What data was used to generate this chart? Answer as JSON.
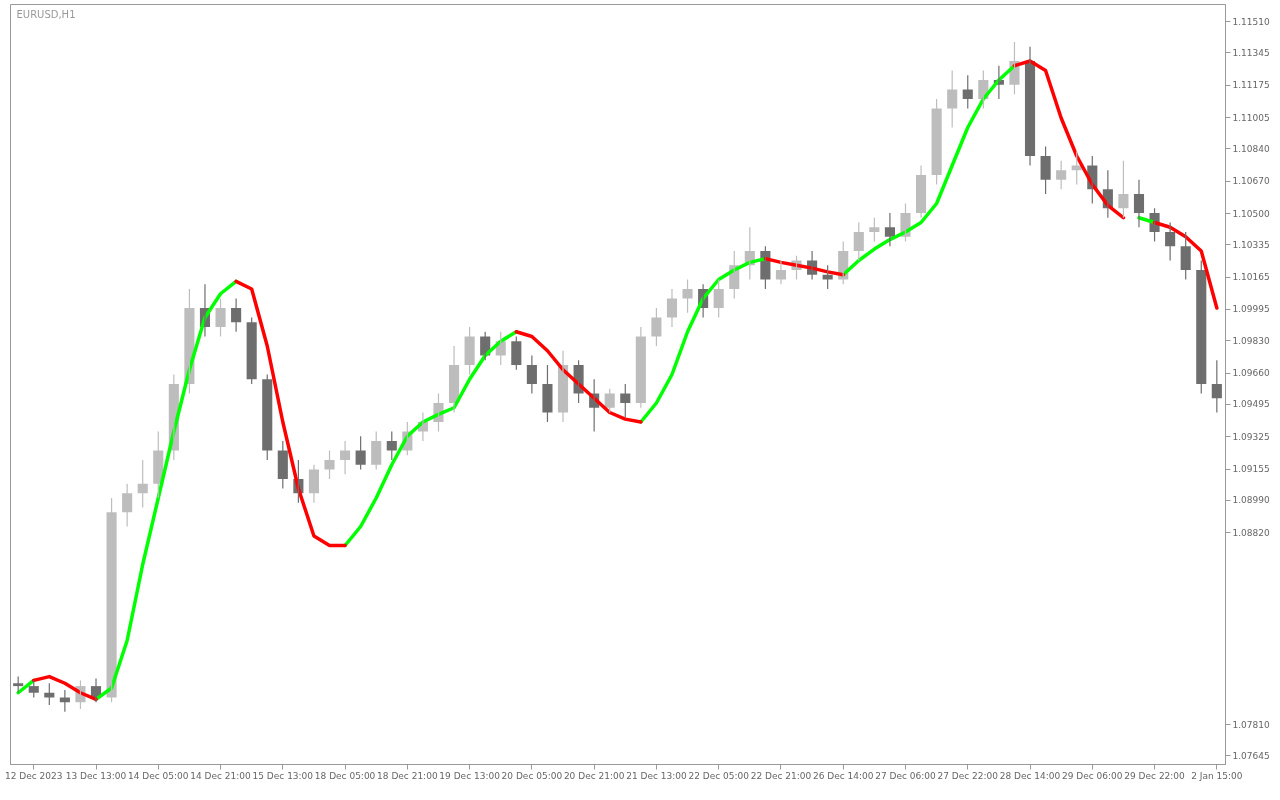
{
  "chart_data": {
    "type": "candlestick",
    "title": "EURUSD,H1",
    "categories": [
      null,
      "12 Dec 2023",
      null,
      null,
      null,
      "13 Dec 13:00",
      null,
      null,
      null,
      "14 Dec 05:00",
      null,
      null,
      null,
      "14 Dec 21:00",
      null,
      null,
      null,
      "15 Dec 13:00",
      null,
      null,
      null,
      "18 Dec 05:00",
      null,
      null,
      null,
      "18 Dec 21:00",
      null,
      null,
      null,
      "19 Dec 13:00",
      null,
      null,
      null,
      "20 Dec 05:00",
      null,
      null,
      null,
      "20 Dec 21:00",
      null,
      null,
      null,
      "21 Dec 13:00",
      null,
      null,
      null,
      "22 Dec 05:00",
      null,
      null,
      null,
      "22 Dec 21:00",
      null,
      null,
      null,
      "26 Dec 14:00",
      null,
      null,
      null,
      "27 Dec 06:00",
      null,
      null,
      null,
      "27 Dec 22:00",
      null,
      null,
      null,
      "28 Dec 14:00",
      null,
      null,
      null,
      "29 Dec 06:00",
      null,
      null,
      null,
      "29 Dec 22:00",
      null,
      null,
      null,
      "2 Jan 15:00"
    ],
    "ohlc": [
      [
        1.08025,
        1.0806,
        1.07975,
        1.0801
      ],
      [
        1.0801,
        1.0804,
        1.0795,
        1.07975
      ],
      [
        1.07975,
        1.08025,
        1.0791,
        1.0795
      ],
      [
        1.0795,
        1.0799,
        1.07875,
        1.07925
      ],
      [
        1.07925,
        1.0804,
        1.0789,
        1.0801
      ],
      [
        1.0801,
        1.0805,
        1.07925,
        1.0795
      ],
      [
        1.0795,
        1.09,
        1.07925,
        1.08925
      ],
      [
        1.08925,
        1.09075,
        1.0885,
        1.09025
      ],
      [
        1.09025,
        1.092,
        1.0895,
        1.09075
      ],
      [
        1.09075,
        1.0935,
        1.09,
        1.0925
      ],
      [
        1.0925,
        1.0965,
        1.092,
        1.096
      ],
      [
        1.096,
        1.101,
        1.0955,
        1.1
      ],
      [
        1.1,
        1.10125,
        1.0985,
        1.099
      ],
      [
        1.099,
        1.1005,
        1.0985,
        1.1
      ],
      [
        1.1,
        1.1005,
        1.09875,
        1.09925
      ],
      [
        1.09925,
        1.0995,
        1.096,
        1.09625
      ],
      [
        1.09625,
        1.0965,
        1.092,
        1.0925
      ],
      [
        1.0925,
        1.093,
        1.0905,
        1.091
      ],
      [
        1.091,
        1.092,
        1.08975,
        1.09025
      ],
      [
        1.09025,
        1.09175,
        1.08975,
        1.0915
      ],
      [
        1.0915,
        1.0925,
        1.091,
        1.092
      ],
      [
        1.092,
        1.093,
        1.09125,
        1.0925
      ],
      [
        1.0925,
        1.09325,
        1.0915,
        1.09175
      ],
      [
        1.09175,
        1.0935,
        1.0915,
        1.093
      ],
      [
        1.093,
        1.0935,
        1.092,
        1.0925
      ],
      [
        1.0925,
        1.094,
        1.09225,
        1.0935
      ],
      [
        1.0935,
        1.0945,
        1.093,
        1.094
      ],
      [
        1.094,
        1.0955,
        1.0935,
        1.095
      ],
      [
        1.095,
        1.098,
        1.0945,
        1.097
      ],
      [
        1.097,
        1.099,
        1.0965,
        1.0985
      ],
      [
        1.0985,
        1.09875,
        1.09725,
        1.0975
      ],
      [
        1.0975,
        1.09875,
        1.097,
        1.09825
      ],
      [
        1.09825,
        1.0985,
        1.09675,
        1.097
      ],
      [
        1.097,
        1.0975,
        1.0955,
        1.096
      ],
      [
        1.096,
        1.097,
        1.094,
        1.0945
      ],
      [
        1.0945,
        1.09775,
        1.094,
        1.097
      ],
      [
        1.097,
        1.09725,
        1.095,
        1.0955
      ],
      [
        1.0955,
        1.09625,
        1.0935,
        1.09475
      ],
      [
        1.09475,
        1.09575,
        1.0945,
        1.0955
      ],
      [
        1.0955,
        1.096,
        1.09425,
        1.095
      ],
      [
        1.095,
        1.099,
        1.09475,
        1.0985
      ],
      [
        1.0985,
        1.1,
        1.098,
        1.0995
      ],
      [
        1.0995,
        1.101,
        1.099,
        1.1005
      ],
      [
        1.1005,
        1.1015,
        1.09975,
        1.101
      ],
      [
        1.101,
        1.10125,
        1.0995,
        1.1
      ],
      [
        1.1,
        1.1015,
        1.0995,
        1.101
      ],
      [
        1.101,
        1.103,
        1.1005,
        1.10225
      ],
      [
        1.10225,
        1.10425,
        1.1015,
        1.103
      ],
      [
        1.103,
        1.10325,
        1.101,
        1.1015
      ],
      [
        1.1015,
        1.1025,
        1.10125,
        1.102
      ],
      [
        1.102,
        1.10275,
        1.1015,
        1.1025
      ],
      [
        1.1025,
        1.103,
        1.1015,
        1.10175
      ],
      [
        1.10175,
        1.10225,
        1.101,
        1.1015
      ],
      [
        1.1015,
        1.1035,
        1.10125,
        1.103
      ],
      [
        1.103,
        1.1045,
        1.1025,
        1.104
      ],
      [
        1.104,
        1.10475,
        1.1035,
        1.10425
      ],
      [
        1.10425,
        1.105,
        1.10325,
        1.10375
      ],
      [
        1.10375,
        1.1055,
        1.1035,
        1.105
      ],
      [
        1.105,
        1.1075,
        1.10475,
        1.107
      ],
      [
        1.107,
        1.111,
        1.1065,
        1.1105
      ],
      [
        1.1105,
        1.1125,
        1.1095,
        1.1115
      ],
      [
        1.1115,
        1.11225,
        1.1105,
        1.111
      ],
      [
        1.111,
        1.1125,
        1.1105,
        1.112
      ],
      [
        1.112,
        1.11275,
        1.111,
        1.11175
      ],
      [
        1.11175,
        1.114,
        1.11125,
        1.113
      ],
      [
        1.113,
        1.11375,
        1.1075,
        1.108
      ],
      [
        1.108,
        1.1085,
        1.106,
        1.10675
      ],
      [
        1.10675,
        1.10775,
        1.10625,
        1.10725
      ],
      [
        1.10725,
        1.10825,
        1.1065,
        1.1075
      ],
      [
        1.1075,
        1.108,
        1.1055,
        1.10625
      ],
      [
        1.10625,
        1.10725,
        1.10475,
        1.10525
      ],
      [
        1.10525,
        1.10775,
        1.10475,
        1.106
      ],
      [
        1.106,
        1.10675,
        1.10425,
        1.105
      ],
      [
        1.105,
        1.10525,
        1.1035,
        1.104
      ],
      [
        1.104,
        1.1045,
        1.1025,
        1.10325
      ],
      [
        1.10325,
        1.104,
        1.1015,
        1.102
      ],
      [
        1.102,
        1.1025,
        1.0955,
        1.096
      ],
      [
        1.096,
        1.09725,
        1.0945,
        1.09525
      ]
    ],
    "series": [
      {
        "type": "line",
        "color": "#00ff00",
        "values": [
          1.07975,
          1.0804,
          null,
          null,
          null,
          1.0794,
          1.08,
          1.0825,
          1.0865,
          1.09,
          1.0935,
          1.09675,
          1.0995,
          1.10075,
          1.1014,
          null,
          null,
          null,
          null,
          null,
          null,
          1.0875,
          1.0885,
          1.09,
          1.09175,
          1.09325,
          1.094,
          1.0944,
          1.09475,
          1.09625,
          1.0975,
          1.09825,
          1.09875,
          null,
          null,
          null,
          null,
          null,
          null,
          null,
          1.094,
          1.095,
          1.0965,
          1.09875,
          1.1005,
          1.1015,
          1.102,
          1.1024,
          1.1026,
          null,
          null,
          null,
          null,
          1.10175,
          1.1025,
          1.1031,
          1.1036,
          1.104,
          1.1045,
          1.1055,
          1.1075,
          1.1095,
          1.111,
          1.112,
          1.11275,
          null,
          null,
          null,
          null,
          null,
          null,
          null,
          1.10475,
          1.1045,
          null,
          null,
          null,
          null
        ]
      },
      {
        "type": "line",
        "color": "#ff0000",
        "values": [
          null,
          1.0804,
          1.0806,
          1.08025,
          1.07975,
          1.0794,
          null,
          null,
          null,
          null,
          null,
          null,
          null,
          null,
          1.1014,
          1.101,
          1.098,
          1.094,
          1.0905,
          1.088,
          1.0875,
          1.0875,
          null,
          null,
          null,
          null,
          null,
          null,
          null,
          null,
          null,
          null,
          1.09875,
          1.0985,
          1.09775,
          1.09675,
          1.096,
          1.09525,
          1.0945,
          1.09415,
          1.094,
          null,
          null,
          null,
          null,
          null,
          null,
          null,
          1.1026,
          1.1024,
          1.10225,
          1.1021,
          1.1019,
          1.10175,
          null,
          null,
          null,
          null,
          null,
          null,
          null,
          null,
          null,
          null,
          1.11275,
          1.113,
          1.1125,
          1.11,
          1.108,
          1.1065,
          1.1054,
          1.10475,
          null,
          1.1045,
          1.10425,
          1.10375,
          1.103,
          1.1
        ]
      }
    ],
    "ylim": [
      1.076,
      1.116
    ],
    "yticks": [
      {
        "value": 1.07645,
        "label": "1.07645"
      },
      {
        "value": 1.0781,
        "label": "1.07810"
      },
      {
        "value": 1.0882,
        "label": "1.08820"
      },
      {
        "value": 1.0899,
        "label": "1.08990"
      },
      {
        "value": 1.09155,
        "label": "1.09155"
      },
      {
        "value": 1.09325,
        "label": "1.09325"
      },
      {
        "value": 1.09495,
        "label": "1.09495"
      },
      {
        "value": 1.0966,
        "label": "1.09660"
      },
      {
        "value": 1.0983,
        "label": "1.09830"
      },
      {
        "value": 1.09995,
        "label": "1.09995"
      },
      {
        "value": 1.10165,
        "label": "1.10165"
      },
      {
        "value": 1.10335,
        "label": "1.10335"
      },
      {
        "value": 1.105,
        "label": "1.10500"
      },
      {
        "value": 1.1067,
        "label": "1.10670"
      },
      {
        "value": 1.1084,
        "label": "1.10840"
      },
      {
        "value": 1.11005,
        "label": "1.11005"
      },
      {
        "value": 1.11175,
        "label": "1.11175"
      },
      {
        "value": 1.11345,
        "label": "1.11345"
      },
      {
        "value": 1.1151,
        "label": "1.11510"
      }
    ],
    "grid": false
  }
}
